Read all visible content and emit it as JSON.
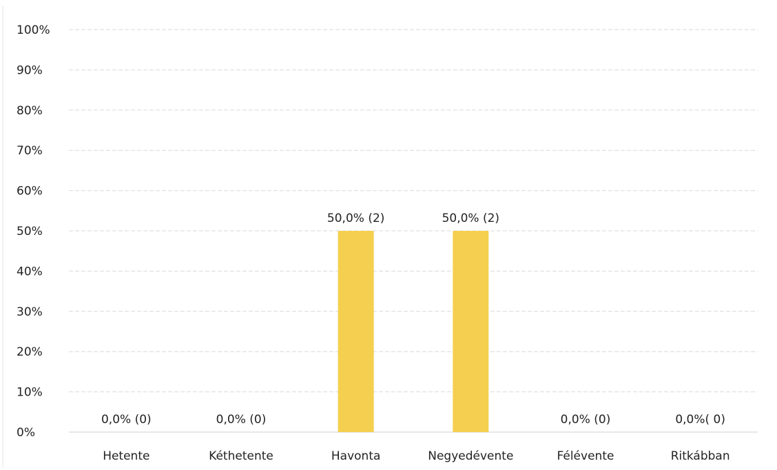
{
  "chart_data": {
    "type": "bar",
    "categories": [
      "Hetente",
      "Kéthetente",
      "Havonta",
      "Negyedévente",
      "Félévente",
      "Ritkábban"
    ],
    "values": [
      0,
      0,
      50,
      50,
      0,
      0
    ],
    "data_labels": [
      "0,0% (0)",
      "0,0% (0)",
      "50,0% (2)",
      "50,0% (2)",
      "0,0% (0)",
      "0,0%( 0)"
    ],
    "y_ticks": [
      "0%",
      "10%",
      "20%",
      "30%",
      "40%",
      "50%",
      "60%",
      "70%",
      "80%",
      "90%",
      "100%"
    ],
    "ylim": [
      0,
      100
    ],
    "grid": true,
    "legend": "none",
    "bar_color": "#f5cf4f",
    "title": "",
    "xlabel": "",
    "ylabel": ""
  }
}
